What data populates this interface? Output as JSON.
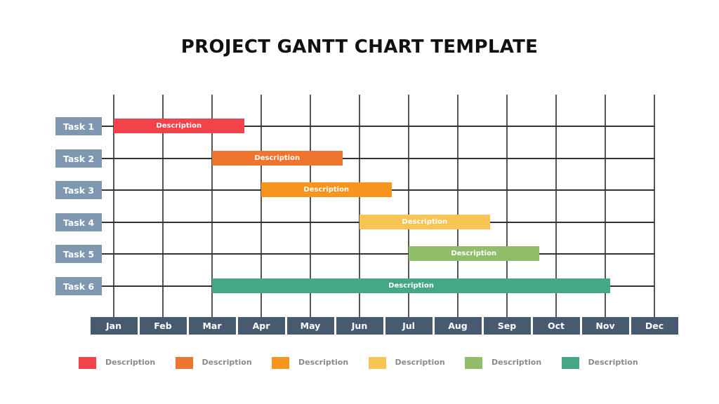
{
  "chart_data": {
    "type": "gantt",
    "title": "PROJECT GANTT CHART TEMPLATE",
    "months": [
      "Jan",
      "Feb",
      "Mar",
      "Apr",
      "May",
      "Jun",
      "Jul",
      "Aug",
      "Sep",
      "Oct",
      "Nov",
      "Dec"
    ],
    "tasks": [
      {
        "label": "Task 1",
        "bar_label": "Description",
        "start": 0,
        "end": 2.65,
        "color": "#f2424a"
      },
      {
        "label": "Task 2",
        "bar_label": "Description",
        "start": 2,
        "end": 4.65,
        "color": "#ef7430"
      },
      {
        "label": "Task 3",
        "bar_label": "Description",
        "start": 3,
        "end": 5.65,
        "color": "#f7941d"
      },
      {
        "label": "Task 4",
        "bar_label": "Description",
        "start": 5,
        "end": 7.65,
        "color": "#f8c555"
      },
      {
        "label": "Task 5",
        "bar_label": "Description",
        "start": 6,
        "end": 8.65,
        "color": "#8fbd6a"
      },
      {
        "label": "Task 6",
        "bar_label": "Description",
        "start": 2,
        "end": 10.1,
        "color": "#44a887"
      }
    ],
    "legend": [
      {
        "label": "Description",
        "color": "#f2424a"
      },
      {
        "label": "Description",
        "color": "#ef7430"
      },
      {
        "label": "Description",
        "color": "#f7941d"
      },
      {
        "label": "Description",
        "color": "#f8c555"
      },
      {
        "label": "Description",
        "color": "#8fbd6a"
      },
      {
        "label": "Description",
        "color": "#44a887"
      }
    ],
    "legend_position": "bottom",
    "grid": true,
    "task_label_color": "#7d98b0",
    "month_label_color": "#475b70"
  }
}
